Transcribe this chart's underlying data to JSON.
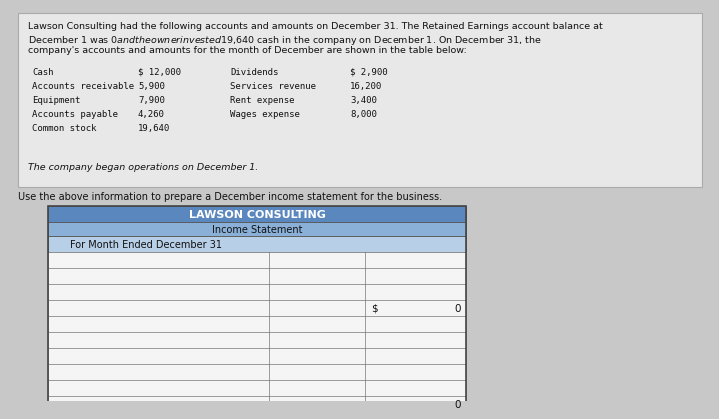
{
  "intro_line1": "Lawson Consulting had the following accounts and amounts on December 31. The Retained Earnings account balance at",
  "intro_line2": "December 1 was $0 and the owner invested $19,640 cash in the company on December 1. On December 31, the",
  "intro_line3": "company's accounts and amounts for the month of December are shown in the table below:",
  "accounts_left": [
    "Cash",
    "Accounts receivable",
    "Equipment",
    "Accounts payable",
    "Common stock"
  ],
  "amounts_left": [
    "$ 12,000",
    "5,900",
    "7,900",
    "4,260",
    "19,640"
  ],
  "accounts_right": [
    "Dividends",
    "Services revenue",
    "Rent expense",
    "Wages expense"
  ],
  "amounts_right": [
    "$ 2,900",
    "16,200",
    "3,400",
    "8,000"
  ],
  "footnote": "The company began operations on December 1.",
  "instruction": "Use the above information to prepare a December income statement for the business.",
  "company_name": "LAWSON CONSULTING",
  "statement_title": "Income Statement",
  "period": "For Month Ended December 31",
  "header_bg_dark": "#5b87bf",
  "header_bg_mid": "#8ab0d8",
  "header_bg_light": "#b8cfe8",
  "row_bg_white": "#f5f5f5",
  "border_color": "#777777",
  "dollar_sign": "$",
  "dollar_value": "0",
  "bottom_value": "0",
  "num_data_rows": 11,
  "info_box_bg": "#e8e8e8",
  "info_box_border": "#aaaaaa",
  "bg_color": "#c8c8c8"
}
